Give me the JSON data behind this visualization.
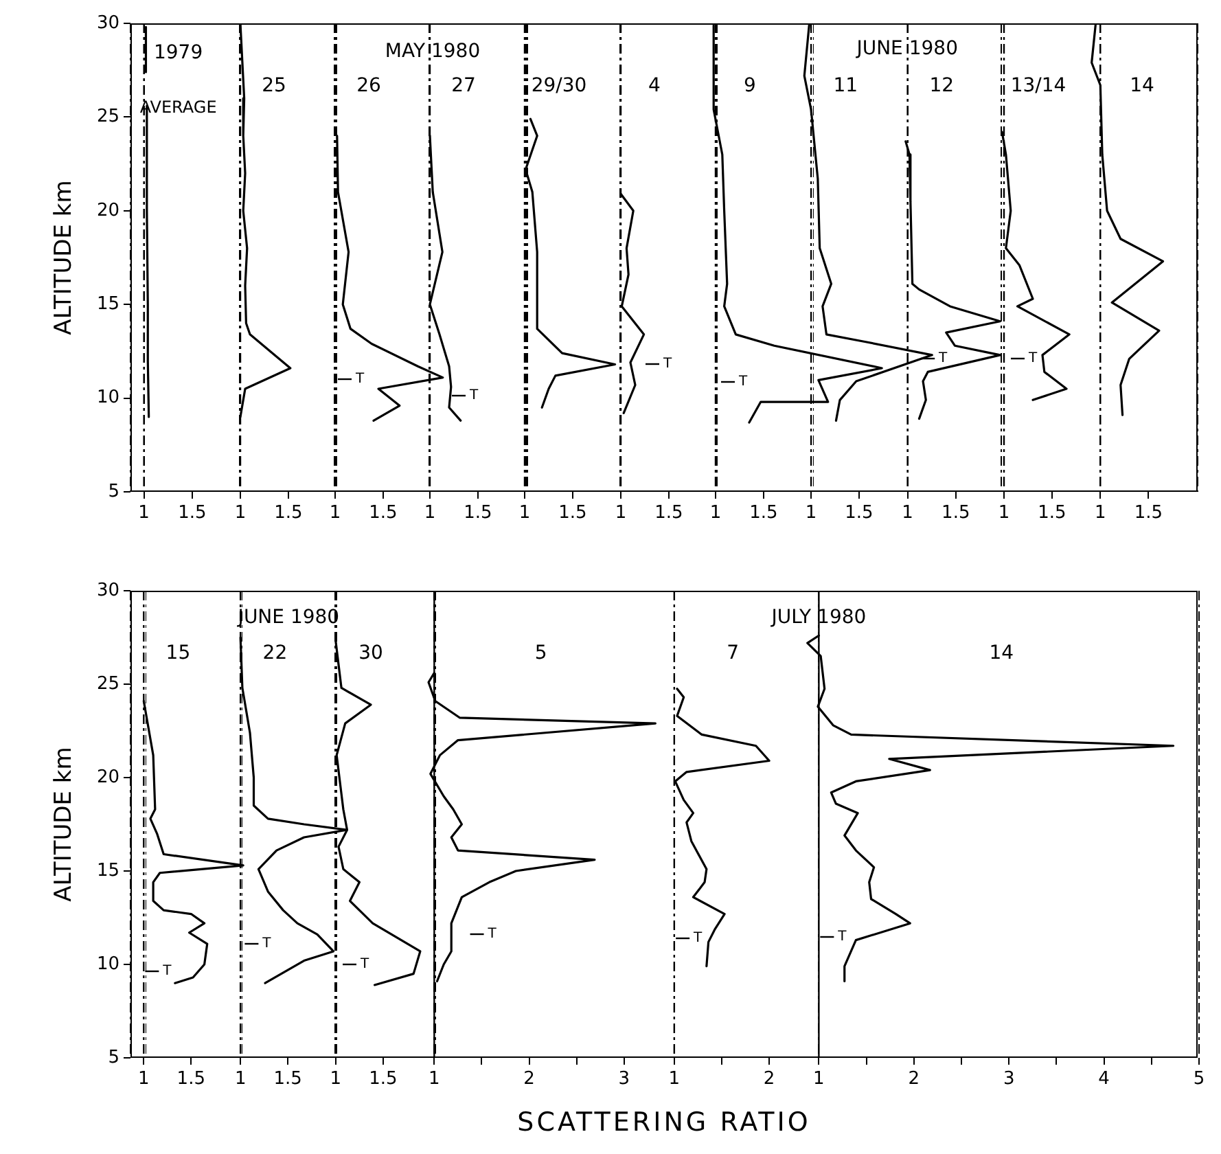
{
  "chart_data": [
    {
      "type": "line",
      "title": "1979",
      "subtitle": "AVERAGE",
      "ylabel": "ALTITUDE km",
      "series": [
        {
          "x": [
            1.02,
            1.02
          ],
          "values": [
            29.8,
            27.4
          ],
          "color": "#000000"
        },
        {
          "x": [
            1.03,
            1.03,
            1.04,
            1.04,
            1.05
          ],
          "values": [
            25.6,
            20,
            15,
            12,
            9
          ],
          "color": "#000000"
        }
      ],
      "xlim": [
        0.86,
        2
      ],
      "xticks": [
        1,
        1.5
      ],
      "ylim": [
        5,
        30
      ],
      "yticks": [
        5,
        10,
        15,
        20,
        25,
        30
      ],
      "ref_lines": [
        {
          "axis": "x",
          "value": 1,
          "line_style": "dashed"
        }
      ]
    },
    {
      "type": "line",
      "title": "25",
      "x": [
        1.0,
        1.02,
        1.04,
        1.03,
        1.05,
        1.03,
        1.07,
        1.05,
        1.06,
        1.1,
        1.52,
        1.05,
        1.0
      ],
      "values": [
        30,
        28,
        26,
        24,
        22,
        20,
        18,
        16,
        14,
        13.4,
        11.6,
        10.5,
        9
      ],
      "color": "#000000",
      "xlim": [
        0,
        2
      ],
      "xticks": [
        1,
        1.5
      ],
      "ylim": [
        5,
        30
      ],
      "yticks": [
        5,
        10,
        15,
        20,
        25,
        30
      ],
      "tick_labels": "x",
      "ref_lines": [
        {
          "axis": "x",
          "value": 1,
          "line_style": "dashed"
        }
      ]
    },
    {
      "type": "line",
      "title": "26",
      "annotations": [
        "MAY 1980",
        "T"
      ],
      "x": [
        1.02,
        1.03,
        1.14,
        1.08,
        1.16,
        1.38,
        1.86,
        2.12,
        1.45,
        1.67,
        1.4
      ],
      "values": [
        24,
        21,
        17.8,
        15,
        13.7,
        12.9,
        11.7,
        11.1,
        10.5,
        9.6,
        8.8
      ],
      "color": "#000000",
      "xlim": [
        0,
        3
      ],
      "xticks": [
        1,
        1.5
      ],
      "ylim": [
        5,
        30
      ],
      "yticks": [
        5,
        10,
        15,
        20,
        25,
        30
      ],
      "tick_labels": "x",
      "ref_lines": [
        {
          "axis": "x",
          "value": 1,
          "line_style": "dashed"
        }
      ]
    },
    {
      "type": "line",
      "title": "27",
      "annotations": [
        "T"
      ],
      "x": [
        1.0,
        1.03,
        1.13,
        1.0,
        1.1,
        1.2,
        1.22,
        1.2,
        1.32
      ],
      "values": [
        24,
        21,
        17.8,
        15,
        13.4,
        11.7,
        10.6,
        9.5,
        8.8
      ],
      "color": "#000000",
      "xlim": [
        0,
        2
      ],
      "xticks": [
        1,
        1.5
      ],
      "ylim": [
        5,
        30
      ],
      "yticks": [
        5,
        10,
        15,
        20,
        25,
        30
      ],
      "tick_labels": "x",
      "ref_lines": [
        {
          "axis": "x",
          "value": 1,
          "line_style": "dashed"
        }
      ]
    },
    {
      "type": "line",
      "title": "29/30",
      "x": [
        1.06,
        1.13,
        1.01,
        1.08,
        1.13,
        1.13,
        1.39,
        1.94,
        1.32,
        1.25,
        1.18
      ],
      "values": [
        24.9,
        24,
        22.2,
        21,
        17.8,
        13.7,
        12.4,
        11.8,
        11.2,
        10.5,
        9.5
      ],
      "color": "#000000",
      "xlim": [
        0,
        2
      ],
      "xticks": [
        1,
        1.5
      ],
      "ylim": [
        5,
        30
      ],
      "yticks": [
        5,
        10,
        15,
        20,
        25,
        30
      ],
      "tick_labels": "x",
      "ref_lines": [
        {
          "axis": "x",
          "value": 1,
          "line_style": "dashed"
        }
      ]
    },
    {
      "type": "line",
      "title": "4",
      "annotations": [
        "T"
      ],
      "x": [
        1.0,
        1.13,
        1.06,
        1.08,
        1.01,
        1.24,
        1.1,
        1.15,
        1.03
      ],
      "values": [
        20.9,
        20,
        18,
        16.6,
        14.9,
        13.4,
        11.9,
        10.7,
        9.2
      ],
      "color": "#000000",
      "xlim": [
        0,
        2
      ],
      "xticks": [
        1,
        1.5
      ],
      "ylim": [
        5,
        30
      ],
      "yticks": [
        5,
        10,
        15,
        20,
        25,
        30
      ],
      "tick_labels": "x",
      "ref_lines": [
        {
          "axis": "x",
          "value": 1,
          "line_style": "dashed"
        }
      ]
    },
    {
      "type": "line",
      "title": "9",
      "annotations": [
        "T"
      ],
      "x": [
        0.98,
        0.98,
        1.07,
        1.09,
        1.12,
        1.09,
        1.21,
        1.61,
        2.73,
        2.07,
        2.17,
        1.47,
        1.35
      ],
      "values": [
        29.9,
        25.4,
        23,
        20,
        16.1,
        14.9,
        13.4,
        12.8,
        11.6,
        10.96,
        9.8,
        9.8,
        8.7
      ],
      "color": "#000000",
      "xlim": [
        0,
        3
      ],
      "xticks": [
        1,
        1.5
      ],
      "ylim": [
        5,
        30
      ],
      "yticks": [
        5,
        10,
        15,
        20,
        25,
        30
      ],
      "tick_labels": "x",
      "ref_lines": [
        {
          "axis": "x",
          "value": 1,
          "line_style": "dashed"
        }
      ]
    },
    {
      "type": "line",
      "title": "11",
      "annotations": [
        "JUNE 1980"
      ],
      "x": [
        0.98,
        0.93,
        1.0,
        1.07,
        1.09,
        1.21,
        1.12,
        1.16,
        1.57,
        2.26,
        1.47,
        1.3,
        1.26
      ],
      "values": [
        29.9,
        27.2,
        25.4,
        21.7,
        18,
        16.1,
        14.9,
        13.4,
        13.0,
        12.3,
        10.9,
        9.9,
        8.8
      ],
      "color": "#000000",
      "xlim": [
        0.02,
        2.98
      ],
      "xticks": [
        1,
        1.5
      ],
      "ylim": [
        5,
        30
      ],
      "yticks": [
        5,
        10,
        15,
        20,
        25,
        30
      ],
      "tick_labels": "x",
      "ref_lines": [
        {
          "axis": "x",
          "value": 1,
          "line_style": "dashed"
        }
      ]
    },
    {
      "type": "line",
      "title": "12",
      "annotations": [
        "T"
      ],
      "x": [
        0.98,
        1.02,
        1.03,
        1.05,
        1.12,
        1.44,
        1.96,
        1.4,
        1.49,
        1.96,
        1.21,
        1.16,
        1.19,
        1.12
      ],
      "values": [
        23.7,
        23,
        20.5,
        16.1,
        15.8,
        14.9,
        14.1,
        13.5,
        12.8,
        12.3,
        11.4,
        10.9,
        9.9,
        8.9
      ],
      "color": "#000000",
      "xlim": [
        0.02,
        2
      ],
      "xticks": [
        1,
        1.5
      ],
      "ylim": [
        5,
        30
      ],
      "yticks": [
        5,
        10,
        15,
        20,
        25,
        30
      ],
      "tick_labels": "x",
      "ref_lines": [
        {
          "axis": "x",
          "value": 1,
          "line_style": "dashed"
        }
      ]
    },
    {
      "type": "line",
      "title": "13/14",
      "annotations": [
        "T"
      ],
      "x": [
        0.98,
        1.02,
        1.07,
        1.02,
        1.16,
        1.3,
        1.14,
        1.68,
        1.4,
        1.42,
        1.65,
        1.3
      ],
      "values": [
        24.2,
        23,
        20,
        18,
        17.1,
        15.3,
        14.9,
        13.4,
        12.3,
        11.4,
        10.5,
        9.9
      ],
      "color": "#000000",
      "xlim": [
        0,
        2
      ],
      "xticks": [
        1,
        1.5
      ],
      "ylim": [
        5,
        30
      ],
      "yticks": [
        5,
        10,
        15,
        20,
        25,
        30
      ],
      "tick_labels": "x",
      "ref_lines": [
        {
          "axis": "x",
          "value": 1,
          "line_style": "dashed"
        }
      ]
    },
    {
      "type": "line",
      "title": "14",
      "x": [
        0.95,
        0.91,
        1.0,
        1.02,
        1.07,
        1.21,
        1.65,
        1.12,
        1.61,
        1.3,
        1.21,
        1.23
      ],
      "values": [
        29.9,
        27.9,
        26.7,
        23,
        20,
        18.5,
        17.3,
        15.1,
        13.6,
        12.1,
        10.7,
        9.1
      ],
      "color": "#000000",
      "xlim": [
        0,
        2.01
      ],
      "xticks": [
        1,
        1.5
      ],
      "ylim": [
        5,
        30
      ],
      "yticks": [
        5,
        10,
        15,
        20,
        25,
        30
      ],
      "tick_labels": "x",
      "ref_lines": [
        {
          "axis": "x",
          "value": 1,
          "line_style": "dashed"
        }
      ]
    },
    {
      "type": "line",
      "title": "15",
      "ylabel": "ALTITUDE km",
      "annotations": [
        "T"
      ],
      "x": [
        1.0,
        1.1,
        1.12,
        1.07,
        1.14,
        1.21,
        2.05,
        1.17,
        1.1,
        1.1,
        1.21,
        1.5,
        1.64,
        1.48,
        1.67,
        1.64,
        1.52,
        1.33
      ],
      "values": [
        24.1,
        21.2,
        18.3,
        17.8,
        17.0,
        15.9,
        15.3,
        14.9,
        14.4,
        13.4,
        12.9,
        12.7,
        12.2,
        11.7,
        11.1,
        10.0,
        9.3,
        9.0
      ],
      "color": "#000000",
      "xlim": [
        0.86,
        3.02
      ],
      "xticks": [
        1,
        1.5
      ],
      "ylim": [
        5,
        30
      ],
      "yticks": [
        5,
        10,
        15,
        20,
        25,
        30
      ],
      "ref_lines": [
        {
          "axis": "x",
          "value": 1,
          "line_style": "dashed"
        }
      ]
    },
    {
      "type": "line",
      "title": "22",
      "annotations": [
        "JUNE 1980",
        "T"
      ],
      "x": [
        1.0,
        1.02,
        1.1,
        1.14,
        1.14,
        1.29,
        1.67,
        2.12,
        1.67,
        1.38,
        1.19,
        1.29,
        1.45,
        1.6,
        1.81,
        1.98,
        1.67,
        1.26
      ],
      "values": [
        27.5,
        24.8,
        22.4,
        20,
        18.5,
        17.8,
        17.5,
        17.2,
        16.8,
        16.1,
        15.1,
        13.9,
        12.9,
        12.2,
        11.6,
        10.7,
        10.2,
        9.0
      ],
      "color": "#000000",
      "xlim": [
        0,
        3.04
      ],
      "xticks": [
        1,
        1.5
      ],
      "ylim": [
        5,
        30
      ],
      "yticks": [
        5,
        10,
        15,
        20,
        25,
        30
      ],
      "tick_labels": "x",
      "ref_lines": [
        {
          "axis": "x",
          "value": 1,
          "line_style": "dashed"
        }
      ]
    },
    {
      "type": "line",
      "title": "30",
      "annotations": [
        "T"
      ],
      "x": [
        1.0,
        1.06,
        1.37,
        1.1,
        1.01,
        1.08,
        1.12,
        1.03,
        1.08,
        1.25,
        1.15,
        1.39,
        1.89,
        1.82,
        1.41
      ],
      "values": [
        27.3,
        24.8,
        23.9,
        22.9,
        21.2,
        18.3,
        17.2,
        16.3,
        15.1,
        14.4,
        13.4,
        12.2,
        10.7,
        9.5,
        8.9
      ],
      "color": "#000000",
      "xlim": [
        0.01,
        2.05
      ],
      "xticks": [
        1,
        1.5
      ],
      "ylim": [
        5,
        30
      ],
      "yticks": [
        5,
        10,
        15,
        20,
        25,
        30
      ],
      "tick_labels": "x",
      "ref_lines": [
        {
          "axis": "x",
          "value": 1,
          "line_style": "dashed"
        }
      ]
    },
    {
      "type": "line",
      "title": "5",
      "annotations": [
        "T"
      ],
      "x": [
        1.0,
        0.94,
        1.01,
        1.27,
        3.33,
        1.25,
        1.06,
        0.96,
        1.1,
        1.2,
        1.29,
        1.18,
        1.25,
        2.69,
        1.86,
        1.58,
        1.29,
        1.18,
        1.18,
        1.1,
        1.03
      ],
      "values": [
        25.6,
        25.1,
        24.1,
        23.2,
        22.9,
        22.0,
        21.2,
        20.2,
        19.0,
        18.3,
        17.5,
        16.8,
        16.1,
        15.6,
        15.0,
        14.4,
        13.6,
        12.2,
        10.7,
        10.0,
        9.1
      ],
      "color": "#000000",
      "xlim": [
        -0.03,
        3.53
      ],
      "xticks": [
        1,
        {
          "value": 1.5,
          "label": null
        },
        2,
        {
          "value": 2.5,
          "label": null
        },
        3
      ],
      "ylim": [
        5,
        30
      ],
      "yticks": [
        5,
        10,
        15,
        20,
        25,
        30
      ],
      "tick_labels": "x",
      "ref_lines": [
        {
          "axis": "x",
          "value": 1,
          "line_style": "solid"
        }
      ]
    },
    {
      "type": "line",
      "title": "7",
      "annotations": [
        "T"
      ],
      "x": [
        1.03,
        1.1,
        1.03,
        1.29,
        1.86,
        2.0,
        1.13,
        1.01,
        1.1,
        1.2,
        1.13,
        1.18,
        1.34,
        1.32,
        1.2,
        1.53,
        1.43,
        1.36,
        1.34
      ],
      "values": [
        24.75,
        24.3,
        23.3,
        22.3,
        21.7,
        20.9,
        20.3,
        19.8,
        18.8,
        18.1,
        17.6,
        16.6,
        15.1,
        14.4,
        13.6,
        12.7,
        11.9,
        11.2,
        9.9
      ],
      "color": "#000000",
      "xlim": [
        -1.53,
        2.52
      ],
      "xticks": [
        1,
        {
          "value": 1.5,
          "label": null
        },
        2
      ],
      "ylim": [
        5,
        30
      ],
      "yticks": [
        5,
        10,
        15,
        20,
        25,
        30
      ],
      "tick_labels": "x",
      "ref_lines": [
        {
          "axis": "x",
          "value": 1,
          "line_style": "dashed"
        }
      ]
    },
    {
      "type": "line",
      "title": "14",
      "xlabel": "SCATTERING RATIO",
      "annotations": [
        "JULY 1980",
        "T"
      ],
      "x": [
        1.0,
        0.88,
        1.02,
        1.06,
        0.99,
        1.15,
        1.34,
        4.73,
        1.74,
        2.17,
        1.39,
        1.13,
        1.18,
        1.41,
        1.27,
        1.39,
        1.58,
        1.53,
        1.55,
        1.81,
        1.96,
        1.39,
        1.27,
        1.27
      ],
      "values": [
        27.6,
        27.2,
        26.5,
        24.75,
        23.8,
        22.8,
        22.3,
        21.7,
        21.0,
        20.4,
        19.8,
        19.2,
        18.6,
        18.1,
        16.9,
        16.1,
        15.2,
        14.4,
        13.5,
        12.7,
        12.2,
        11.3,
        9.9,
        9.1
      ],
      "color": "#000000",
      "xlim": [
        -0.52,
        5
      ],
      "xticks": [
        1,
        {
          "value": 1.5,
          "label": null
        },
        2,
        {
          "value": 2.5,
          "label": null
        },
        3,
        {
          "value": 3.5,
          "label": null
        },
        4,
        {
          "value": 4.5,
          "label": null
        },
        5
      ],
      "ylim": [
        5,
        30
      ],
      "yticks": [
        5,
        10,
        15,
        20,
        25,
        30
      ],
      "tick_labels": "x",
      "ref_lines": [
        {
          "axis": "x",
          "value": 1,
          "line_style": "solid"
        }
      ]
    }
  ]
}
